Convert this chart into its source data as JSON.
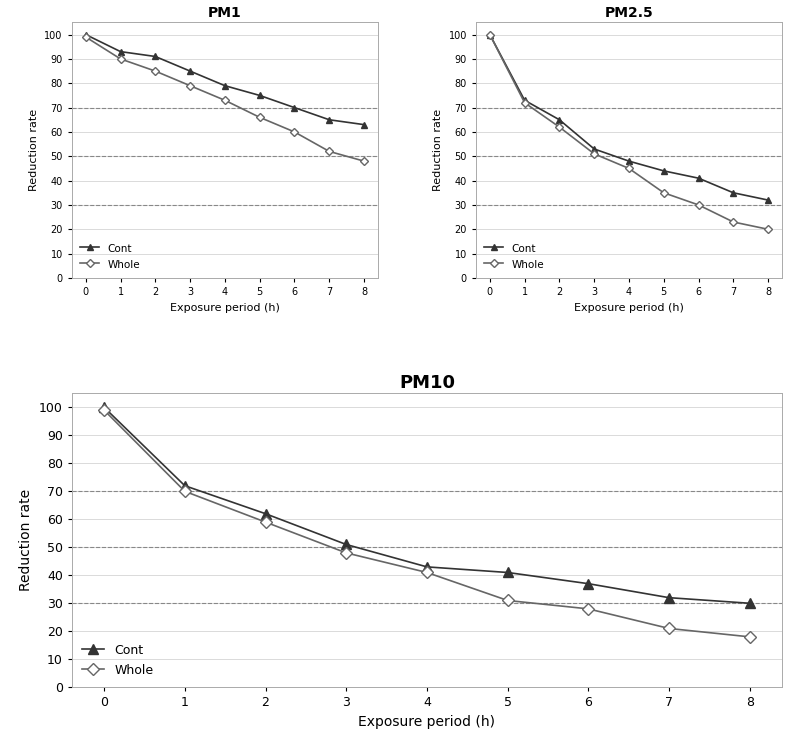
{
  "x": [
    0,
    1,
    2,
    3,
    4,
    5,
    6,
    7,
    8
  ],
  "pm1": {
    "title": "PM1",
    "cont": [
      100,
      93,
      91,
      85,
      79,
      75,
      70,
      65,
      63
    ],
    "whole": [
      99,
      90,
      85,
      79,
      73,
      66,
      60,
      52,
      48
    ]
  },
  "pm25": {
    "title": "PM2.5",
    "cont": [
      100,
      73,
      65,
      53,
      48,
      44,
      41,
      35,
      32
    ],
    "whole": [
      100,
      72,
      62,
      51,
      45,
      35,
      30,
      23,
      20
    ]
  },
  "pm10": {
    "title": "PM10",
    "cont": [
      100,
      72,
      62,
      51,
      43,
      41,
      37,
      32,
      30
    ],
    "whole": [
      99,
      70,
      59,
      48,
      41,
      31,
      28,
      21,
      18
    ]
  },
  "xlabel": "Exposure period (h)",
  "ylabel": "Reduction rate",
  "hlines": [
    70,
    50,
    30
  ],
  "ylim": [
    0,
    105
  ],
  "yticks": [
    0,
    10,
    20,
    30,
    40,
    50,
    60,
    70,
    80,
    90,
    100
  ],
  "cont_color": "#333333",
  "whole_color": "#666666",
  "bg_color": "#ffffff",
  "legend_cont": "Cont",
  "legend_whole": "Whole"
}
